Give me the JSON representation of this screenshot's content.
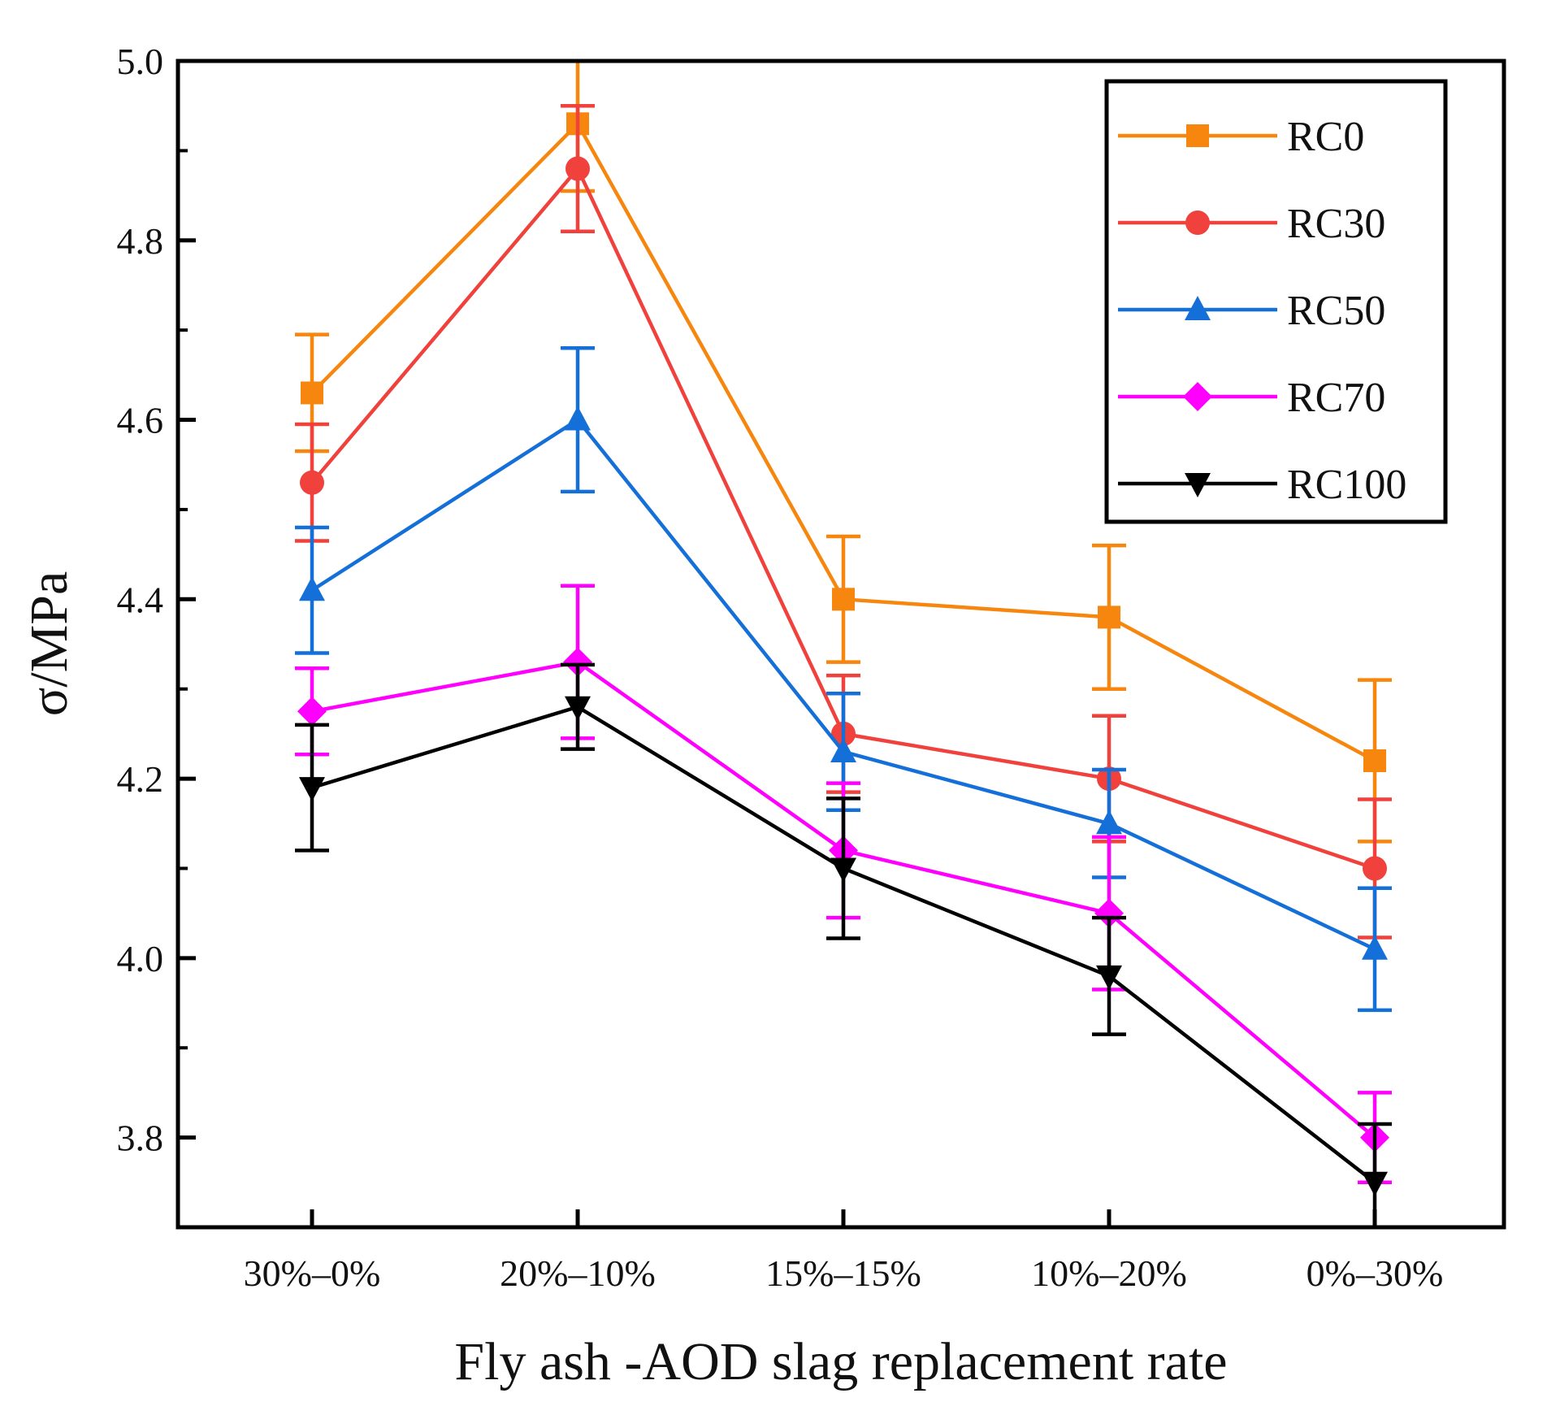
{
  "chart_data": {
    "type": "line",
    "title": "",
    "xlabel": "Fly ash -AOD slag replacement rate",
    "ylabel": "σ/MPa",
    "categories": [
      "30%–0%",
      "20%–10%",
      "15%–15%",
      "10%–20%",
      "0%–30%"
    ],
    "ylim": [
      3.7,
      5.0
    ],
    "yticks": [
      "3.8",
      "4.0",
      "4.2",
      "4.4",
      "4.6",
      "4.8",
      "5.0"
    ],
    "ytick_values": [
      3.8,
      4.0,
      4.2,
      4.4,
      4.6,
      4.8,
      5.0
    ],
    "minor_ytick_values": [
      3.9,
      4.1,
      4.3,
      4.5,
      4.7,
      4.9
    ],
    "grid": false,
    "legend_position": "top-right",
    "series": [
      {
        "name": "RC0",
        "color": "#F7860F",
        "marker": "square",
        "values": [
          4.63,
          4.93,
          4.4,
          4.38,
          4.22
        ],
        "errors": [
          0.065,
          0.075,
          0.07,
          0.08,
          0.09
        ]
      },
      {
        "name": "RC30",
        "color": "#F0413C",
        "marker": "circle",
        "values": [
          4.53,
          4.88,
          4.25,
          4.2,
          4.1
        ],
        "errors": [
          0.065,
          0.07,
          0.065,
          0.07,
          0.077
        ]
      },
      {
        "name": "RC50",
        "color": "#1470D8",
        "marker": "triangle-up",
        "values": [
          4.41,
          4.6,
          4.23,
          4.15,
          4.01
        ],
        "errors": [
          0.07,
          0.08,
          0.065,
          0.06,
          0.068
        ]
      },
      {
        "name": "RC70",
        "color": "#FF00FF",
        "marker": "diamond",
        "values": [
          4.275,
          4.33,
          4.12,
          4.05,
          3.8
        ],
        "errors": [
          0.048,
          0.085,
          0.075,
          0.085,
          0.05
        ]
      },
      {
        "name": "RC100",
        "color": "#000000",
        "marker": "triangle-down",
        "values": [
          4.19,
          4.28,
          4.1,
          3.98,
          3.75
        ],
        "errors": [
          0.07,
          0.047,
          0.078,
          0.065,
          0.065
        ]
      }
    ]
  }
}
